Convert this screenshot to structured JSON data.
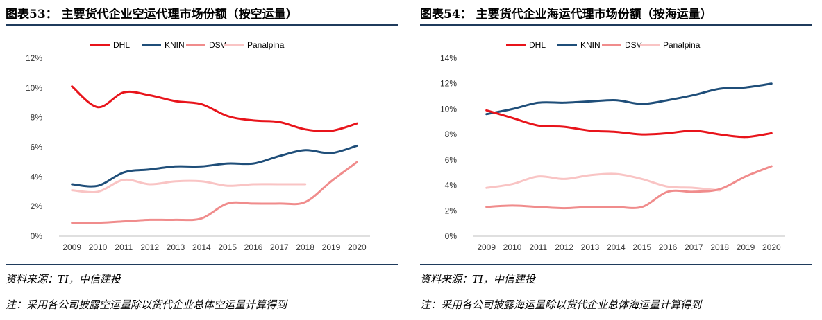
{
  "charts": [
    {
      "title": "图表53：  主要货代企业空运代理市场份额（按空运量）",
      "source": "资料来源：TI，中信建投",
      "note": "注：采用各公司披露空运量除以货代企业总体空运量计算得到",
      "chart_data": {
        "type": "line",
        "x": [
          "2009",
          "2010",
          "2011",
          "2012",
          "2013",
          "2014",
          "2015",
          "2016",
          "2017",
          "2018",
          "2019",
          "2020"
        ],
        "yticks": [
          "0%",
          "2%",
          "4%",
          "6%",
          "8%",
          "10%",
          "12%"
        ],
        "ylim": [
          0,
          12
        ],
        "legend": "top",
        "grid": false,
        "series": [
          {
            "name": "DHL",
            "color": "#e8141b",
            "values": [
              10.1,
              8.7,
              9.7,
              9.5,
              9.1,
              8.9,
              8.1,
              7.8,
              7.7,
              7.2,
              7.1,
              7.6
            ]
          },
          {
            "name": "KNIN",
            "color": "#1f4e79",
            "values": [
              3.5,
              3.4,
              4.3,
              4.5,
              4.7,
              4.7,
              4.9,
              4.9,
              5.4,
              5.8,
              5.6,
              6.1
            ]
          },
          {
            "name": "DSV",
            "color": "#f08c8c",
            "values": [
              0.9,
              0.9,
              1.0,
              1.1,
              1.1,
              1.2,
              2.2,
              2.2,
              2.2,
              2.3,
              3.7,
              5.0
            ]
          },
          {
            "name": "Panalpina",
            "color": "#f9c4c4",
            "values": [
              3.1,
              3.0,
              3.8,
              3.5,
              3.7,
              3.7,
              3.4,
              3.5,
              3.5,
              3.5,
              null,
              null
            ]
          }
        ]
      }
    },
    {
      "title": "图表54：  主要货代企业海运代理市场份额（按海运量）",
      "source": "资料来源：TI，中信建投",
      "note": "注：采用各公司披露海运量除以货代企业总体海运量计算得到",
      "chart_data": {
        "type": "line",
        "x": [
          "2009",
          "2010",
          "2011",
          "2012",
          "2013",
          "2014",
          "2015",
          "2016",
          "2017",
          "2018",
          "2019",
          "2020"
        ],
        "yticks": [
          "0%",
          "2%",
          "4%",
          "6%",
          "8%",
          "10%",
          "12%",
          "14%"
        ],
        "ylim": [
          0,
          14
        ],
        "legend": "top",
        "grid": false,
        "series": [
          {
            "name": "DHL",
            "color": "#e8141b",
            "values": [
              9.9,
              9.3,
              8.7,
              8.6,
              8.3,
              8.2,
              8.0,
              8.1,
              8.3,
              8.0,
              7.8,
              8.1
            ]
          },
          {
            "name": "KNIN",
            "color": "#1f4e79",
            "values": [
              9.6,
              10.0,
              10.5,
              10.5,
              10.6,
              10.7,
              10.4,
              10.7,
              11.1,
              11.6,
              11.7,
              12.0
            ]
          },
          {
            "name": "DSV",
            "color": "#f08c8c",
            "values": [
              2.3,
              2.4,
              2.3,
              2.2,
              2.3,
              2.3,
              2.3,
              3.5,
              3.5,
              3.7,
              4.7,
              5.5
            ]
          },
          {
            "name": "Panalpina",
            "color": "#f9c4c4",
            "values": [
              3.8,
              4.1,
              4.7,
              4.5,
              4.8,
              4.9,
              4.5,
              3.9,
              3.8,
              3.6,
              null,
              null
            ]
          }
        ]
      }
    }
  ]
}
